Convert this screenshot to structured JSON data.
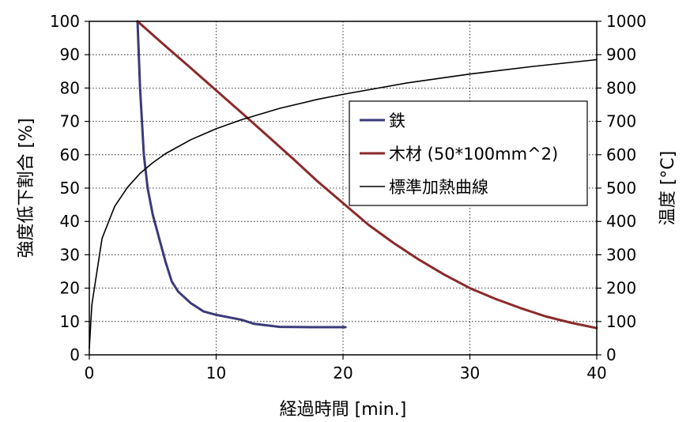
{
  "chart_data": {
    "type": "line",
    "title": "",
    "xlabel": "経過時間 [min.]",
    "ylabel_left": "強度低下割合 [%]",
    "ylabel_right": "温度 [°C]",
    "xlim": [
      0,
      40
    ],
    "ylim_left": [
      0,
      100
    ],
    "ylim_right": [
      0,
      1000
    ],
    "x_ticks": [
      0,
      10,
      20,
      30,
      40
    ],
    "y_left_ticks": [
      0,
      10,
      20,
      30,
      40,
      50,
      60,
      70,
      80,
      90,
      100
    ],
    "y_right_ticks": [
      0,
      100,
      200,
      300,
      400,
      500,
      600,
      700,
      800,
      900,
      1000
    ],
    "grid": true,
    "legend_position": "upper-right",
    "series": [
      {
        "name": "鉄",
        "color": "#3a3a7a",
        "axis": "left",
        "points": [
          [
            3.8,
            100
          ],
          [
            4.0,
            80
          ],
          [
            4.3,
            60
          ],
          [
            4.6,
            50
          ],
          [
            5.0,
            42
          ],
          [
            5.5,
            35
          ],
          [
            6.0,
            28
          ],
          [
            6.5,
            22
          ],
          [
            7.0,
            19
          ],
          [
            8.0,
            15.5
          ],
          [
            9.0,
            13
          ],
          [
            10.0,
            12
          ],
          [
            12.0,
            10.5
          ],
          [
            13.0,
            9.3
          ],
          [
            15.0,
            8.4
          ],
          [
            17.5,
            8.3
          ],
          [
            20.2,
            8.3
          ]
        ]
      },
      {
        "name": "木材 (50*100mm^2)",
        "color": "#8b2a2a",
        "axis": "left",
        "points": [
          [
            3.8,
            100
          ],
          [
            6.0,
            92.6
          ],
          [
            8.0,
            86
          ],
          [
            10.0,
            79.3
          ],
          [
            12.0,
            72.6
          ],
          [
            14.0,
            65.8
          ],
          [
            16.0,
            59
          ],
          [
            18.0,
            52
          ],
          [
            20.0,
            45.5
          ],
          [
            22.0,
            39
          ],
          [
            24.0,
            33.5
          ],
          [
            26.0,
            28.5
          ],
          [
            28.0,
            24
          ],
          [
            30.0,
            20
          ],
          [
            32.0,
            16.8
          ],
          [
            34.0,
            14
          ],
          [
            36.0,
            11.5
          ],
          [
            38.0,
            9.6
          ],
          [
            40.0,
            8
          ]
        ]
      },
      {
        "name": "標準加熱曲線",
        "color": "#000000",
        "axis": "right",
        "points": [
          [
            0,
            20
          ],
          [
            0.2,
            150
          ],
          [
            1.0,
            349
          ],
          [
            2.0,
            445
          ],
          [
            3.0,
            502
          ],
          [
            4.0,
            544
          ],
          [
            5.0,
            576
          ],
          [
            6.0,
            603
          ],
          [
            8.0,
            645
          ],
          [
            10.0,
            678
          ],
          [
            12.0,
            705
          ],
          [
            15.0,
            739
          ],
          [
            18.0,
            766
          ],
          [
            20.0,
            781
          ],
          [
            25.0,
            815
          ],
          [
            30.0,
            842
          ],
          [
            35.0,
            865
          ],
          [
            40.0,
            885
          ]
        ]
      }
    ]
  }
}
